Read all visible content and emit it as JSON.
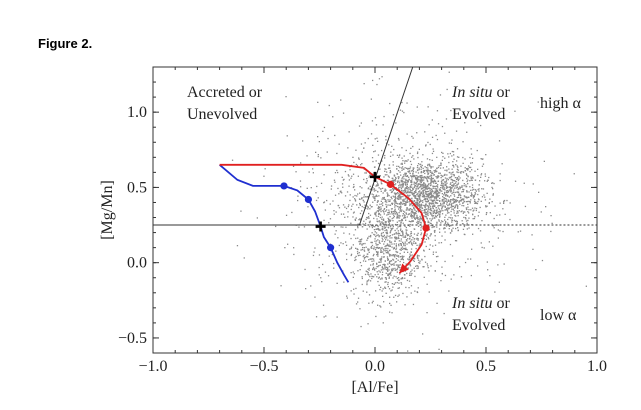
{
  "figure_label": "Figure 2.",
  "chart_data": {
    "type": "scatter",
    "xlabel": "[Al/Fe]",
    "ylabel": "[Mg/Mn]",
    "xlim": [
      -1.0,
      1.0
    ],
    "ylim": [
      -0.6,
      1.3
    ],
    "xticks": [
      -1.0,
      -0.5,
      0.0,
      0.5,
      1.0
    ],
    "xtick_labels": [
      "−1.0",
      "−0.5",
      "0.0",
      "0.5",
      "1.0"
    ],
    "yticks": [
      -0.5,
      0.0,
      0.5,
      1.0
    ],
    "ytick_labels": [
      "−0.5",
      "0.0",
      "0.5",
      "1.0"
    ],
    "region_labels": {
      "accreted_line1": "Accreted or",
      "accreted_line2": "Unevolved",
      "insitu_high_line1_a": "In situ",
      "insitu_high_line1_b": " or",
      "insitu_high_line2": "Evolved",
      "high_alpha": "high α",
      "insitu_low_line1_a": "In situ",
      "insitu_low_line1_b": " or",
      "insitu_low_line2": "Evolved",
      "low_alpha": "low α"
    },
    "boundaries": {
      "horizontal_y": 0.25,
      "horizontal_solid_x": [
        -1.0,
        -0.07
      ],
      "horizontal_dashed_x": [
        -0.07,
        1.0
      ],
      "diagonal": [
        [
          -0.07,
          0.25
        ],
        [
          0.17,
          1.3
        ]
      ]
    },
    "scatter_cloud": {
      "color": "#8a8a8a",
      "clusters": [
        {
          "cx": 0.22,
          "cy": 0.45,
          "sx": 0.13,
          "sy": 0.12,
          "n": 1700
        },
        {
          "cx": 0.05,
          "cy": 0.08,
          "sx": 0.08,
          "sy": 0.16,
          "n": 700
        },
        {
          "cx": 0.12,
          "cy": 0.4,
          "sx": 0.26,
          "sy": 0.32,
          "n": 700
        }
      ]
    },
    "series": [
      {
        "color": "#1f2fd0",
        "points": [
          [
            -0.7,
            0.65
          ],
          [
            -0.62,
            0.55
          ],
          [
            -0.55,
            0.51
          ],
          [
            -0.48,
            0.51
          ],
          [
            -0.41,
            0.51
          ],
          [
            -0.35,
            0.48
          ],
          [
            -0.3,
            0.42
          ],
          [
            -0.27,
            0.34
          ],
          [
            -0.245,
            0.24
          ],
          [
            -0.23,
            0.17
          ],
          [
            -0.2,
            0.1
          ],
          [
            -0.17,
            0.0
          ],
          [
            -0.14,
            -0.08
          ],
          [
            -0.12,
            -0.13
          ]
        ],
        "markers": [
          [
            -0.41,
            0.51
          ],
          [
            -0.3,
            0.42
          ],
          [
            -0.2,
            0.1
          ]
        ]
      },
      {
        "color": "#e02020",
        "points": [
          [
            -0.7,
            0.65
          ],
          [
            -0.4,
            0.65
          ],
          [
            -0.15,
            0.65
          ],
          [
            -0.05,
            0.63
          ],
          [
            0.0,
            0.57
          ],
          [
            0.07,
            0.52
          ],
          [
            0.15,
            0.43
          ],
          [
            0.21,
            0.33
          ],
          [
            0.23,
            0.23
          ],
          [
            0.21,
            0.12
          ],
          [
            0.16,
            0.01
          ],
          [
            0.11,
            -0.07
          ]
        ],
        "markers": [
          [
            0.07,
            0.52
          ],
          [
            0.23,
            0.23
          ]
        ],
        "end_arrow": [
          0.11,
          -0.07
        ]
      }
    ],
    "cross_markers": [
      [
        0.0,
        0.57
      ],
      [
        -0.245,
        0.24
      ]
    ]
  }
}
